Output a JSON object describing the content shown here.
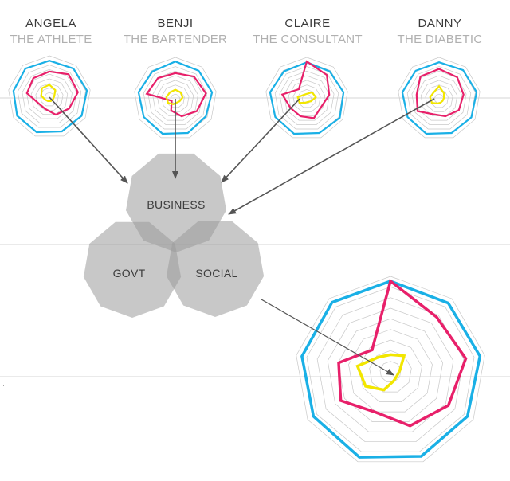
{
  "personas": [
    {
      "name": "ANGELA",
      "role": "THE ATHLETE"
    },
    {
      "name": "BENJI",
      "role": "THE BARTENDER"
    },
    {
      "name": "CLAIRE",
      "role": "THE CONSULTANT"
    },
    {
      "name": "DANNY",
      "role": "THE DIABETIC"
    }
  ],
  "sectors": {
    "business": "BUSINESS",
    "govt": "GOVT",
    "social": "SOCIAL"
  },
  "colors": {
    "outer": "#1ab0e6",
    "middle": "#e8206a",
    "inner": "#f2e600",
    "grid": "#c8c8c8",
    "sector_fill": "#9b9b9b",
    "arrow": "#555555",
    "rule": "#d6d6d6"
  },
  "radar_levels": 9,
  "radar_sides": 9,
  "mini_radars": [
    {
      "outer": [
        0.88,
        0.9,
        0.92,
        0.9,
        0.88,
        0.9,
        0.9,
        0.88,
        0.9
      ],
      "middle": [
        0.62,
        0.72,
        0.7,
        0.55,
        0.45,
        0.3,
        0.3,
        0.55,
        0.6
      ],
      "inner": [
        0.3,
        0.22,
        0.12,
        0.1,
        0.1,
        0.1,
        0.12,
        0.2,
        0.28
      ]
    },
    {
      "outer": [
        0.9,
        0.88,
        0.9,
        0.85,
        0.88,
        0.9,
        0.88,
        0.9,
        0.86
      ],
      "middle": [
        0.62,
        0.7,
        0.75,
        0.6,
        0.45,
        0.3,
        0.1,
        0.7,
        0.65
      ],
      "inner": [
        0.22,
        0.2,
        0.18,
        0.12,
        0.1,
        0.14,
        0.2,
        0.22,
        0.2
      ]
    },
    {
      "outer": [
        0.88,
        0.86,
        0.9,
        0.92,
        0.88,
        0.9,
        0.88,
        0.9,
        0.86
      ],
      "middle": [
        0.9,
        0.75,
        0.55,
        0.4,
        0.5,
        0.45,
        0.45,
        0.6,
        0.3
      ],
      "inner": [
        0.12,
        0.2,
        0.22,
        0.12,
        0.08,
        0.1,
        0.2,
        0.22,
        0.12
      ]
    },
    {
      "outer": [
        0.88,
        0.9,
        0.92,
        0.9,
        0.88,
        0.9,
        0.88,
        0.9,
        0.88
      ],
      "middle": [
        0.72,
        0.68,
        0.6,
        0.55,
        0.45,
        0.4,
        0.6,
        0.55,
        0.7
      ],
      "inner": [
        0.3,
        0.18,
        0.12,
        0.1,
        0.1,
        0.12,
        0.2,
        0.22,
        0.2
      ]
    }
  ],
  "big_radar": {
    "outer": [
      0.95,
      0.94,
      0.95,
      0.93,
      0.94,
      0.95,
      0.93,
      0.94,
      0.95
    ],
    "middle": [
      0.95,
      0.75,
      0.8,
      0.7,
      0.6,
      0.45,
      0.6,
      0.55,
      0.3
    ],
    "inner": [
      0.18,
      0.22,
      0.1,
      0.08,
      0.1,
      0.2,
      0.3,
      0.35,
      0.2
    ]
  }
}
